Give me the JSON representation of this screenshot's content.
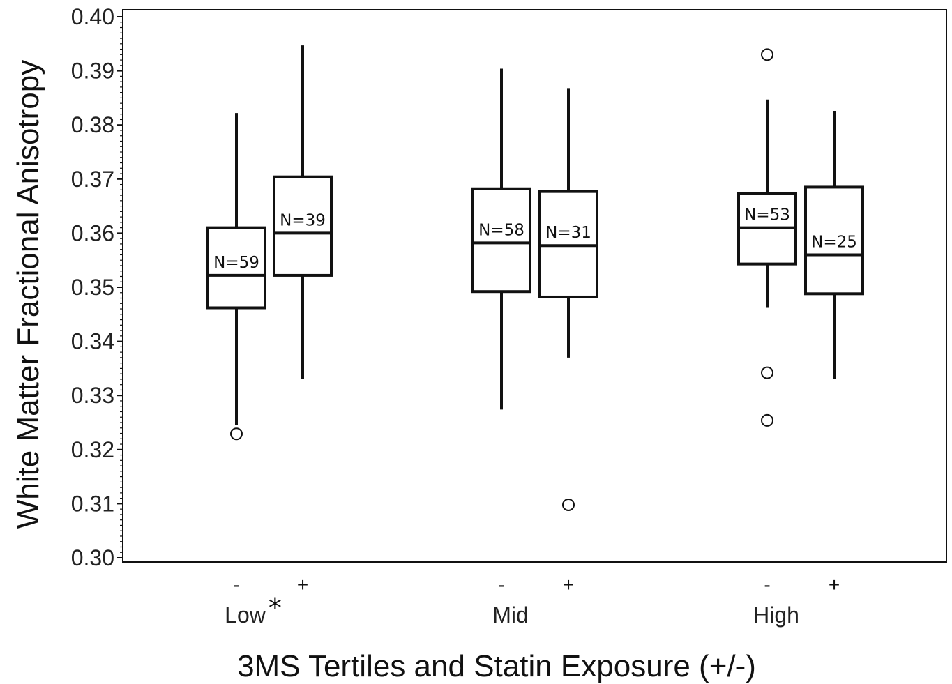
{
  "chart_data": {
    "type": "box",
    "ylabel": "White Matter Fractional Anisotropy",
    "xlabel": "3MS Tertiles and Statin Exposure (+/-)",
    "ylim": [
      0.3,
      0.4
    ],
    "yticks": [
      "0.30",
      "0.31",
      "0.32",
      "0.33",
      "0.34",
      "0.35",
      "0.36",
      "0.37",
      "0.38",
      "0.39",
      "0.40"
    ],
    "groups": [
      {
        "label": "Low",
        "marker": "*"
      },
      {
        "label": "Mid",
        "marker": ""
      },
      {
        "label": "High",
        "marker": ""
      }
    ],
    "boxes": [
      {
        "group": "Low",
        "statin": "-",
        "n_label": "N=59",
        "whisker_low": 0.3245,
        "q1": 0.3462,
        "median": 0.3522,
        "q3": 0.361,
        "whisker_high": 0.3822,
        "outliers": [
          0.3229
        ]
      },
      {
        "group": "Low",
        "statin": "+",
        "n_label": "N=39",
        "whisker_low": 0.333,
        "q1": 0.3522,
        "median": 0.36,
        "q3": 0.3704,
        "whisker_high": 0.3947,
        "outliers": []
      },
      {
        "group": "Mid",
        "statin": "-",
        "n_label": "N=58",
        "whisker_low": 0.3274,
        "q1": 0.3492,
        "median": 0.3582,
        "q3": 0.3682,
        "whisker_high": 0.3904,
        "outliers": []
      },
      {
        "group": "Mid",
        "statin": "+",
        "n_label": "N=31",
        "whisker_low": 0.337,
        "q1": 0.3482,
        "median": 0.3577,
        "q3": 0.3677,
        "whisker_high": 0.3868,
        "outliers": [
          0.3098
        ]
      },
      {
        "group": "High",
        "statin": "-",
        "n_label": "N=53",
        "whisker_low": 0.3462,
        "q1": 0.3543,
        "median": 0.361,
        "q3": 0.3673,
        "whisker_high": 0.3847,
        "outliers": [
          0.393,
          0.3342,
          0.3254
        ]
      },
      {
        "group": "High",
        "statin": "+",
        "n_label": "N=25",
        "whisker_low": 0.333,
        "q1": 0.3488,
        "median": 0.356,
        "q3": 0.3685,
        "whisker_high": 0.3826,
        "outliers": []
      }
    ]
  }
}
